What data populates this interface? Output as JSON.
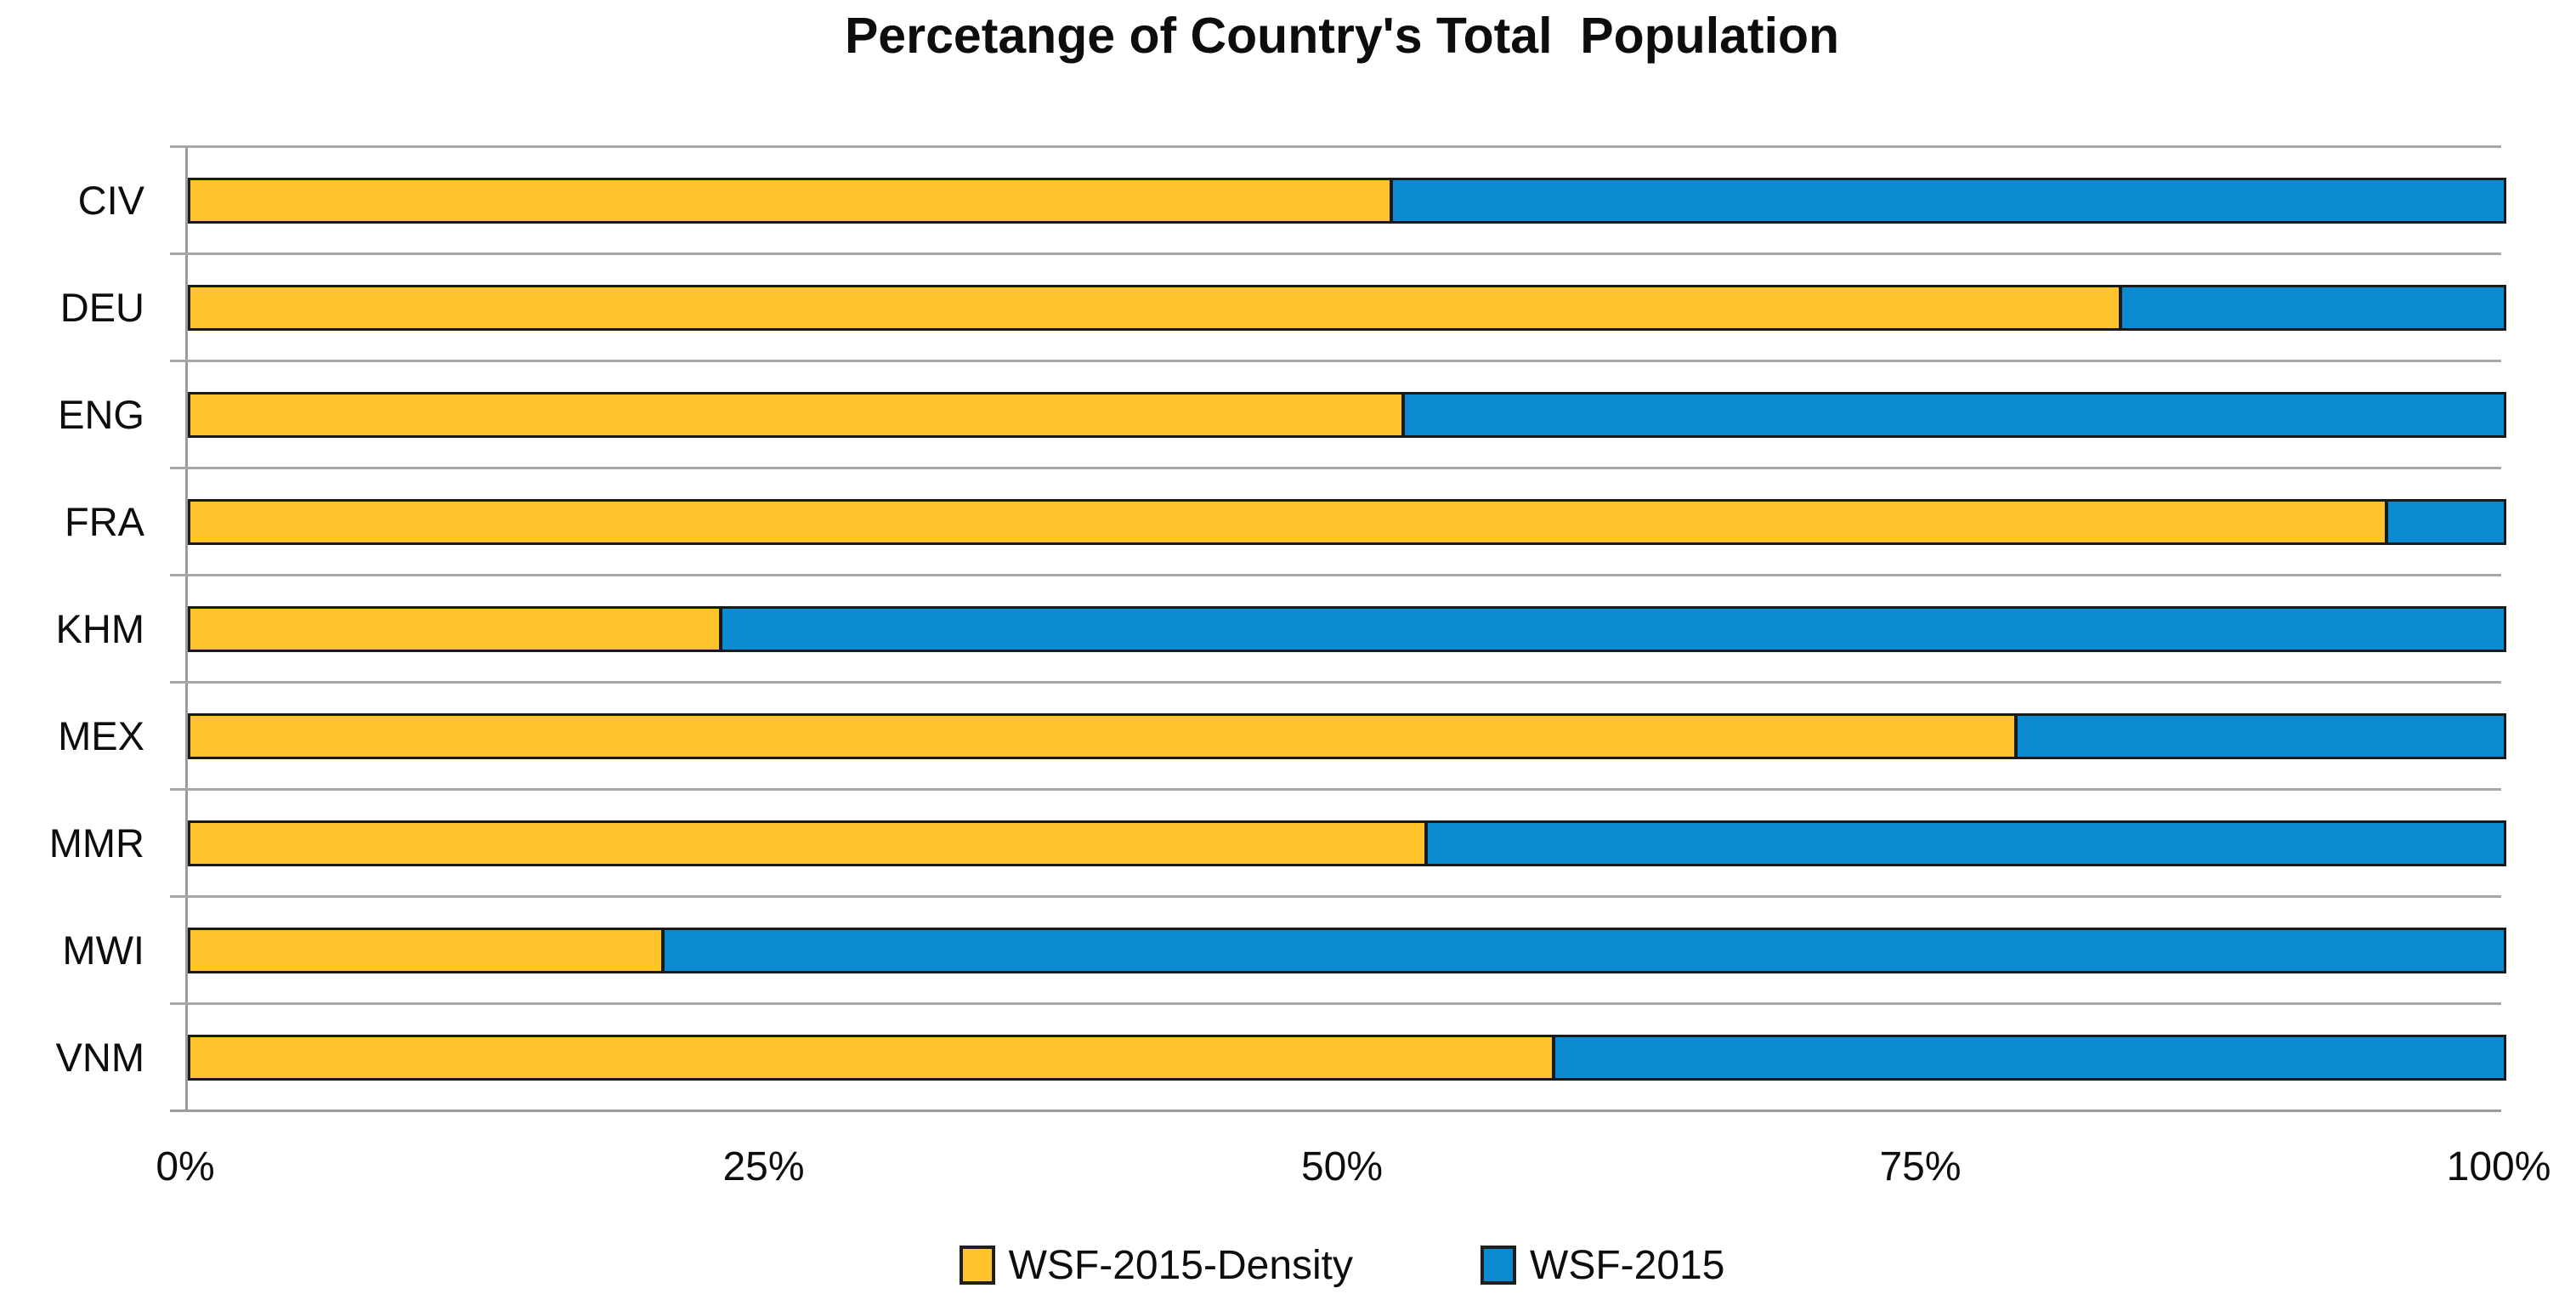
{
  "title": "Percetange of Country's Total  Population",
  "chart_data": {
    "type": "bar",
    "subtype": "horizontal-stacked",
    "title": "Percetange of Country's Total  Population",
    "categories": [
      "CIV",
      "DEU",
      "ENG",
      "FRA",
      "KHM",
      "MEX",
      "MMR",
      "MWI",
      "VNM"
    ],
    "series": [
      {
        "name": "WSF-2015-Density",
        "color": "#FFC32B",
        "values": [
          52,
          83.5,
          52.5,
          95,
          23,
          79,
          53.5,
          20.5,
          59
        ]
      },
      {
        "name": "WSF-2015",
        "color": "#0A8AD0",
        "values": [
          48,
          16.5,
          47.5,
          5,
          77,
          21,
          46.5,
          79.5,
          41
        ]
      }
    ],
    "x_ticks": [
      "0%",
      "25%",
      "50%",
      "75%",
      "100%"
    ],
    "xlim": [
      0,
      100
    ],
    "xlabel": "",
    "ylabel": "",
    "grid": "horizontal band boundary lines",
    "legend_position": "bottom-center"
  },
  "style_colors": {
    "bar_border": "#1A1A1A",
    "gridline": "#A8A8A8",
    "axis_line": "#9B9B9B",
    "background": "#FFFFFF"
  }
}
